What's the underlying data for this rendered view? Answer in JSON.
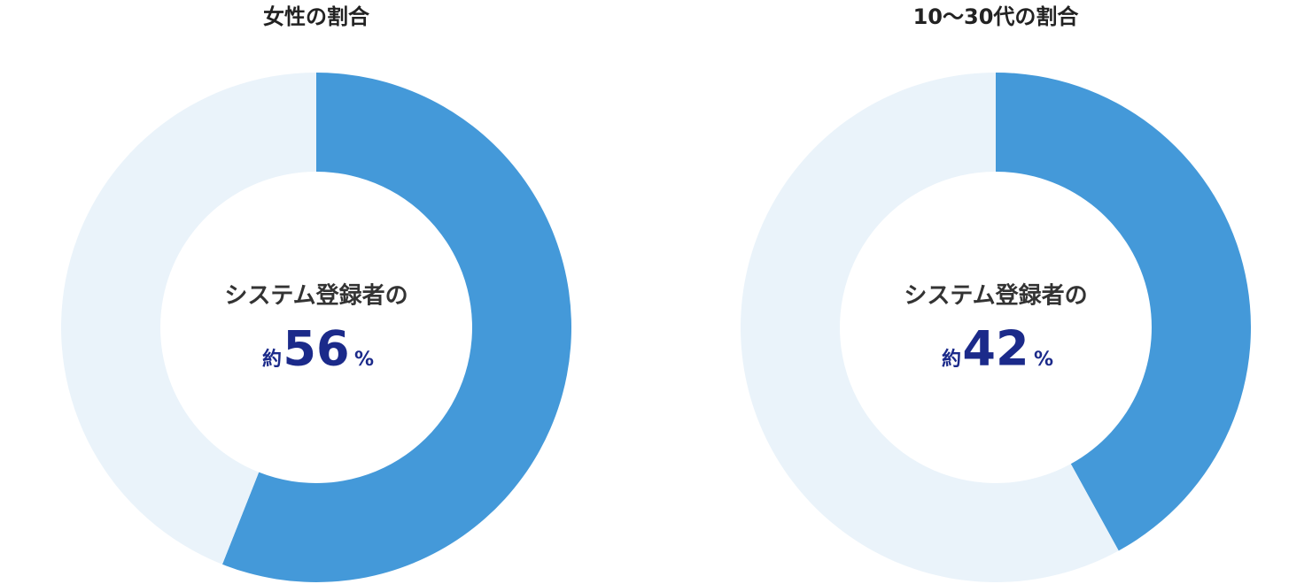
{
  "chart_data": [
    {
      "type": "donut",
      "title": "女性の割合",
      "center_label": "システム登録者の",
      "prefix": "約",
      "unit": "%",
      "values": [
        56,
        44
      ],
      "colors": [
        "#4499d9",
        "#eaf3fa"
      ]
    },
    {
      "type": "donut",
      "title": "10〜30代の割合",
      "center_label": "システム登録者の",
      "prefix": "約",
      "unit": "%",
      "values": [
        42,
        58
      ],
      "colors": [
        "#4499d9",
        "#eaf3fa"
      ]
    }
  ]
}
